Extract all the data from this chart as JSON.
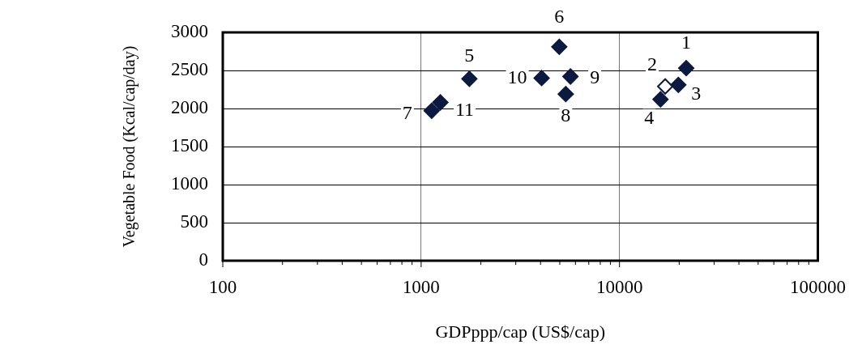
{
  "chart_data": {
    "type": "scatter",
    "xlabel": "GDPppp/cap (US$/cap)",
    "ylabel": "Vegetable Food (Kcal/cap/day)",
    "log": "x",
    "xlim": [
      100,
      100000
    ],
    "xticks": [
      100,
      1000,
      10000,
      100000
    ],
    "ylim": [
      0,
      3000
    ],
    "yticks": [
      0,
      500,
      1000,
      1500,
      2000,
      2500,
      3000
    ],
    "grid": true,
    "legend": false,
    "marker": "diamond",
    "series": [
      {
        "color": "#0c1a40",
        "x": [
          21700,
          19800,
          16100,
          1750,
          4970,
          1130,
          5360,
          5660,
          4050,
          1250
        ],
        "values": [
          2530,
          2310,
          2120,
          2390,
          2810,
          1970,
          2190,
          2420,
          2400,
          2080
        ]
      },
      {
        "color": "#0c1a40",
        "x": [
          17000
        ],
        "values": [
          2290
        ]
      }
    ],
    "annotations": [
      {
        "text": "1",
        "x": 21700,
        "y": 2530
      },
      {
        "text": "2",
        "x": 17000,
        "y": 2290
      },
      {
        "text": "3",
        "x": 19800,
        "y": 2310
      },
      {
        "text": "4",
        "x": 16100,
        "y": 2120
      },
      {
        "text": "5",
        "x": 1750,
        "y": 2390
      },
      {
        "text": "6",
        "x": 4970,
        "y": 2810
      },
      {
        "text": "7",
        "x": 1130,
        "y": 1970
      },
      {
        "text": "8",
        "x": 5360,
        "y": 2190
      },
      {
        "text": "9",
        "x": 5660,
        "y": 2420
      },
      {
        "text": "10",
        "x": 4050,
        "y": 2400
      },
      {
        "text": "11",
        "x": 1250,
        "y": 2080
      }
    ]
  }
}
